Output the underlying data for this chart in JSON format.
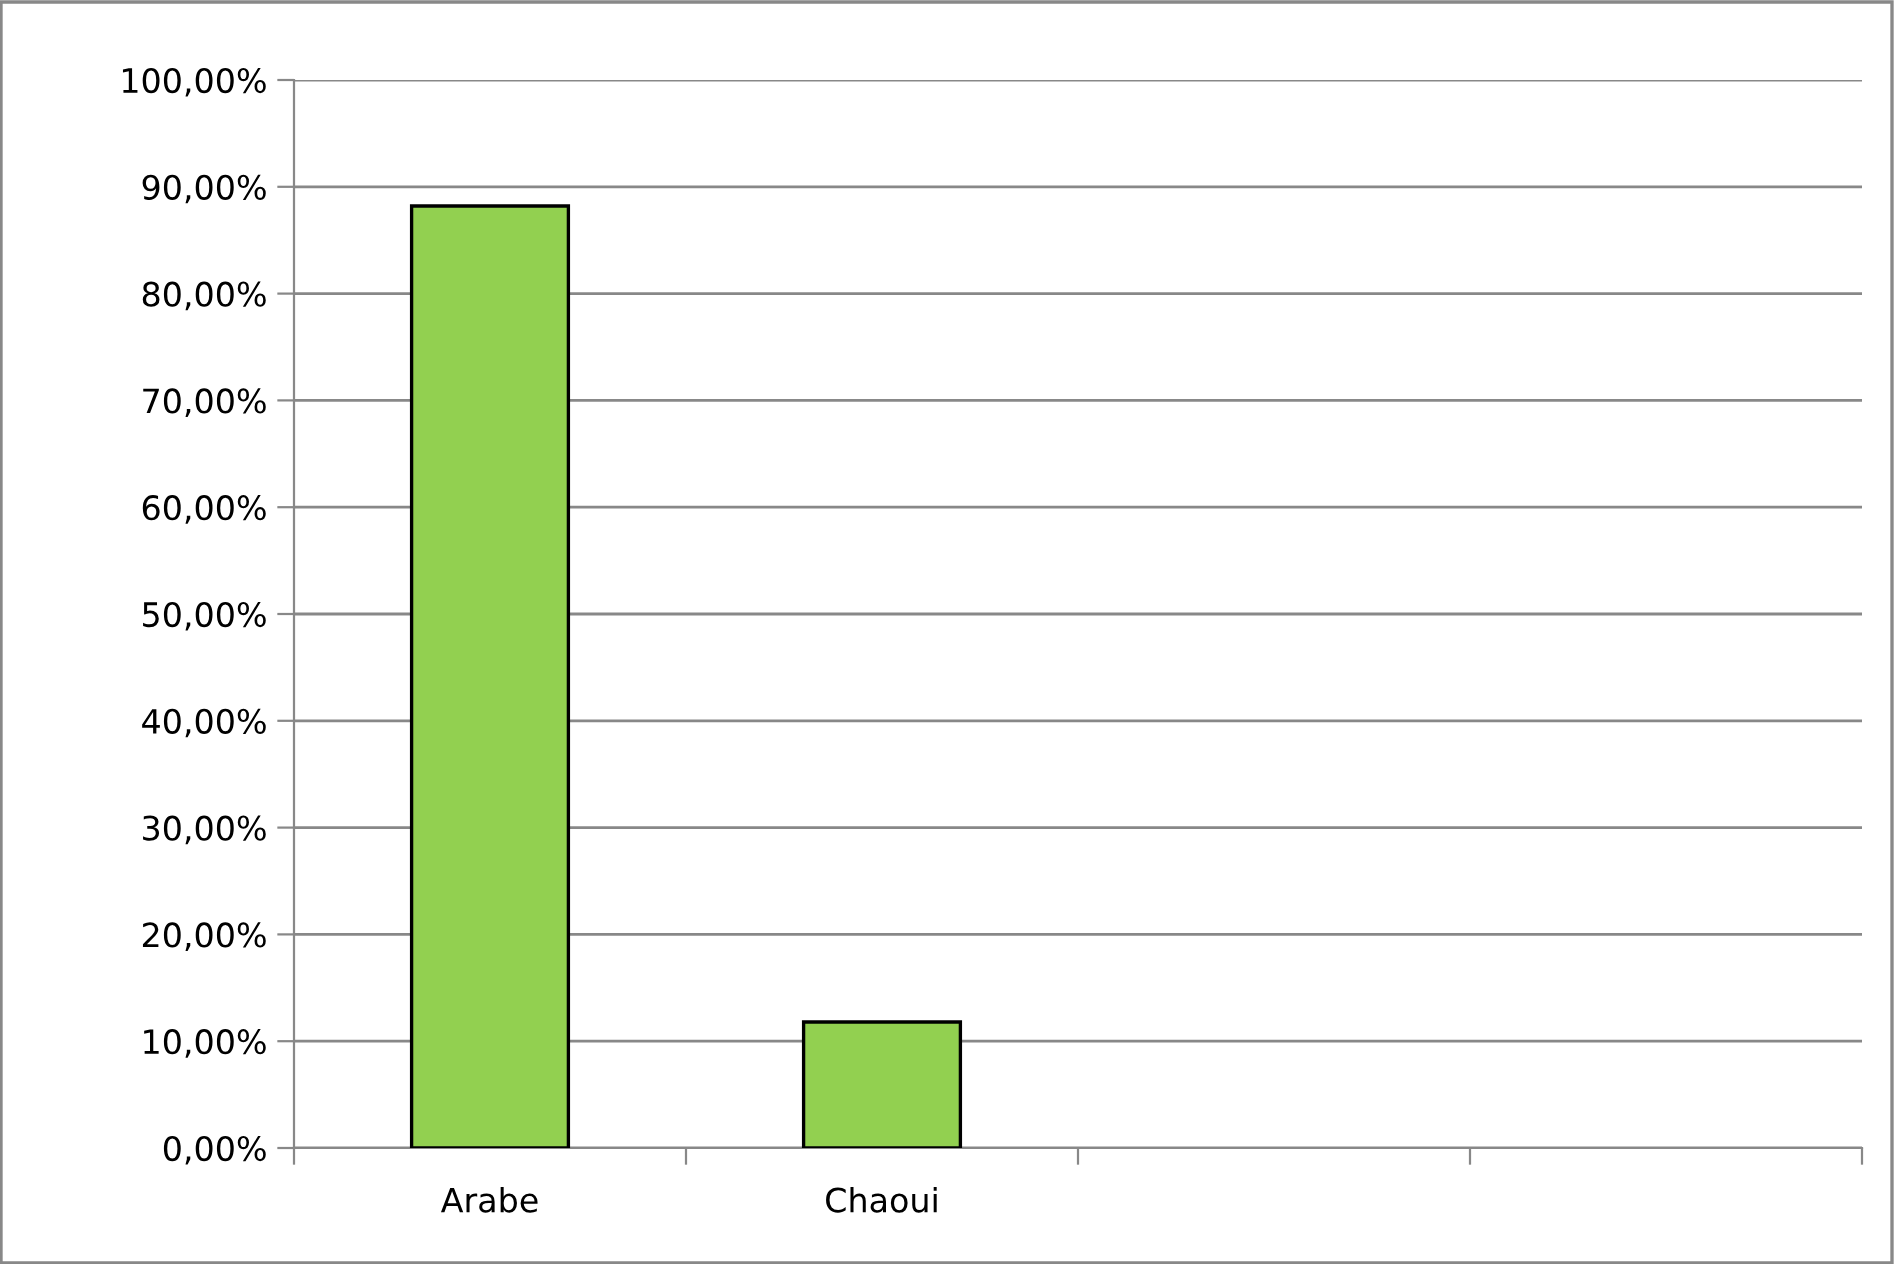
{
  "chart_data": {
    "type": "bar",
    "categories": [
      "Arabe",
      "Chaoui",
      null,
      null
    ],
    "values": [
      88.2,
      11.8,
      null,
      null
    ],
    "color": "#92d050",
    "ylim": [
      0,
      100
    ],
    "yticks": [
      {
        "value": 0,
        "label": "0,00%"
      },
      {
        "value": 10,
        "label": "10,00%"
      },
      {
        "value": 20,
        "label": "20,00%"
      },
      {
        "value": 30,
        "label": "30,00%"
      },
      {
        "value": 40,
        "label": "40,00%"
      },
      {
        "value": 50,
        "label": "50,00%"
      },
      {
        "value": 60,
        "label": "60,00%"
      },
      {
        "value": 70,
        "label": "70,00%"
      },
      {
        "value": 80,
        "label": "80,00%"
      },
      {
        "value": 90,
        "label": "90,00%"
      },
      {
        "value": 100,
        "label": "100,00%"
      }
    ],
    "grid": "y",
    "legend": false
  }
}
